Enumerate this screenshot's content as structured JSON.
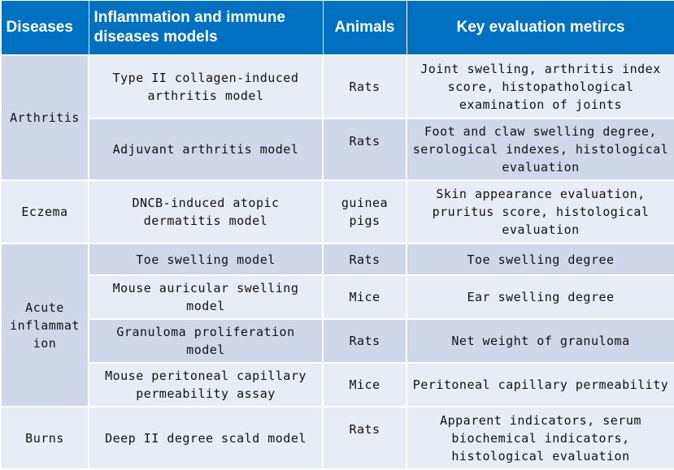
{
  "headers": {
    "diseases": "Diseases",
    "models": "Inflammation and immune diseases models",
    "animals": "Animals",
    "metrics": "Key evaluation metircs"
  },
  "rows": [
    {
      "disease": "Arthritis",
      "model": "Type II collagen-induced arthritis model",
      "animal": "Rats",
      "metrics": "Joint swelling, arthritis index score, histopathological examination of joints"
    },
    {
      "model": "Adjuvant arthritis model",
      "animal": "Rats",
      "metrics": "Foot and claw swelling degree, serological indexes, histological evaluation"
    },
    {
      "disease": "Eczema",
      "model": "DNCB-induced atopic dermatitis model",
      "animal": "guinea pigs",
      "metrics": "Skin appearance evaluation, pruritus score, histological evaluation"
    },
    {
      "disease": "Acute inflammat ion",
      "model": "Toe swelling model",
      "animal": "Rats",
      "metrics": "Toe swelling degree"
    },
    {
      "model": "Mouse auricular swelling model",
      "animal": "Mice",
      "metrics": "Ear swelling degree"
    },
    {
      "model": "Granuloma proliferation model",
      "animal": "Rats",
      "metrics": "Net weight of granuloma"
    },
    {
      "model": "Mouse peritoneal capillary permeability assay",
      "animal": "Mice",
      "metrics": "Peritoneal capillary permeability"
    },
    {
      "disease": "Burns",
      "model": "Deep II degree scald model",
      "animal": "Rats",
      "metrics": "Apparent indicators, serum biochemical indicators, histological evaluation"
    }
  ]
}
